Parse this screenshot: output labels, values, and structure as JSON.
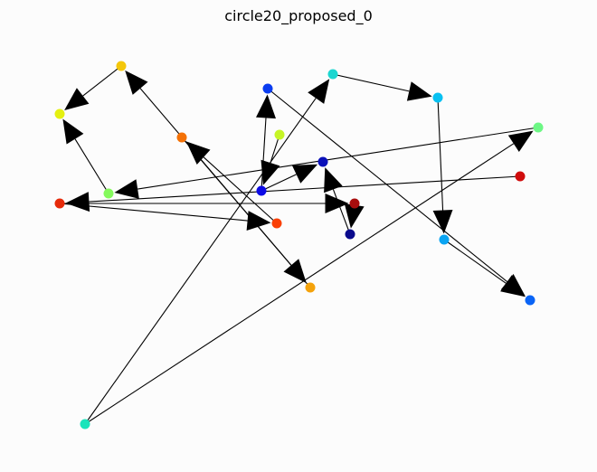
{
  "title": "circle20_proposed_0",
  "edge_color": "#000000",
  "nodes": [
    {
      "id": "n0",
      "color": "#f4c70a"
    },
    {
      "id": "n1",
      "color": "#19e4bb"
    },
    {
      "id": "n2",
      "color": "#e62a0a"
    },
    {
      "id": "n3",
      "color": "#1bd6d0"
    },
    {
      "id": "n4",
      "color": "#0a3cf0"
    },
    {
      "id": "n5",
      "color": "#08c1f2"
    },
    {
      "id": "n6",
      "color": "#6df785"
    },
    {
      "id": "n7",
      "color": "#84f95c"
    },
    {
      "id": "n8",
      "color": "#f47106"
    },
    {
      "id": "n9",
      "color": "#c6f526"
    },
    {
      "id": "n10",
      "color": "#0a0a8c"
    },
    {
      "id": "n11",
      "color": "#e4f011"
    },
    {
      "id": "n12",
      "color": "#0c0ae6"
    },
    {
      "id": "n13",
      "color": "#a80d0d"
    },
    {
      "id": "n14",
      "color": "#d00d0d"
    },
    {
      "id": "n15",
      "color": "#fa4006"
    },
    {
      "id": "n16",
      "color": "#0a10b9"
    },
    {
      "id": "n17",
      "color": "#0aa4f2"
    },
    {
      "id": "n18",
      "color": "#f4a20a"
    },
    {
      "id": "n19",
      "color": "#0a64f6"
    }
  ],
  "edges": [
    {
      "from": "n0",
      "to": "n11"
    },
    {
      "from": "n1",
      "to": "n6"
    },
    {
      "from": "n1",
      "to": "n3"
    },
    {
      "from": "n2",
      "to": "n15"
    },
    {
      "from": "n2",
      "to": "n13"
    },
    {
      "from": "n3",
      "to": "n5"
    },
    {
      "from": "n4",
      "to": "n19"
    },
    {
      "from": "n5",
      "to": "n17"
    },
    {
      "from": "n6",
      "to": "n7"
    },
    {
      "from": "n7",
      "to": "n11"
    },
    {
      "from": "n8",
      "to": "n18"
    },
    {
      "from": "n9",
      "to": "n12"
    },
    {
      "from": "n10",
      "to": "n16"
    },
    {
      "from": "n12",
      "to": "n4"
    },
    {
      "from": "n12",
      "to": "n16"
    },
    {
      "from": "n13",
      "to": "n10"
    },
    {
      "from": "n14",
      "to": "n2"
    },
    {
      "from": "n15",
      "to": "n8"
    },
    {
      "from": "n17",
      "to": "n19"
    },
    {
      "from": "n18",
      "to": "n0"
    }
  ]
}
